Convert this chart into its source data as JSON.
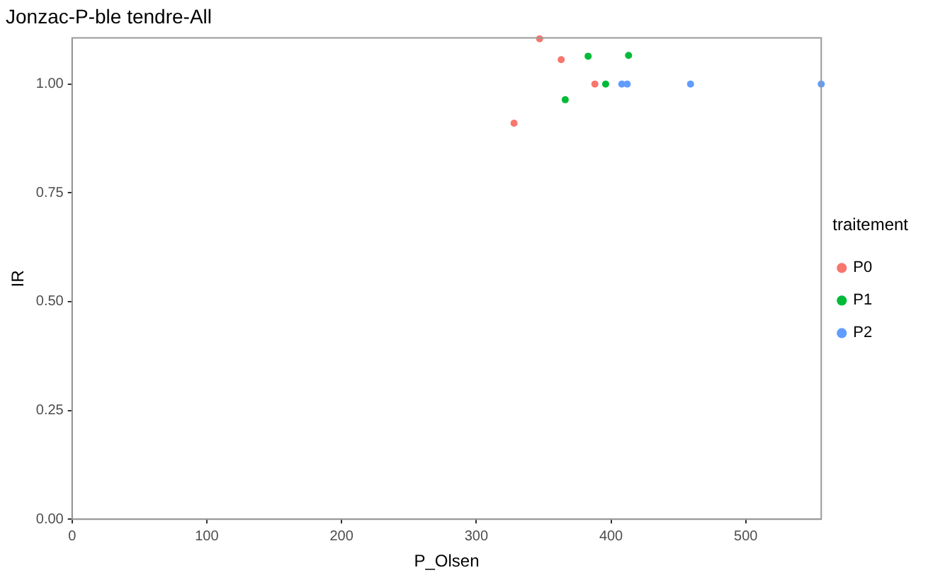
{
  "chart_data": {
    "type": "scatter",
    "title": "Jonzac-P-ble tendre-All",
    "xlabel": "P_Olsen",
    "ylabel": "IR",
    "legend_title": "traitement",
    "legend": "right",
    "grid": false,
    "marker": "circle",
    "xlim": [
      0,
      556
    ],
    "ylim": [
      0,
      1.106
    ],
    "xticks": [
      0,
      100,
      200,
      300,
      400,
      500
    ],
    "yticks": [
      {
        "value": 0,
        "label": "0.00"
      },
      {
        "value": 0.25,
        "label": "0.25"
      },
      {
        "value": 0.5,
        "label": "0.50"
      },
      {
        "value": 0.75,
        "label": "0.75"
      },
      {
        "value": 1,
        "label": "1.00"
      }
    ],
    "series": [
      {
        "name": "P0",
        "color": "#f8766d",
        "x": [
          347,
          363,
          388,
          328
        ],
        "values": [
          1.104,
          1.056,
          1.0,
          0.91
        ]
      },
      {
        "name": "P1",
        "color": "#00ba38",
        "x": [
          383,
          413,
          396,
          366
        ],
        "values": [
          1.064,
          1.066,
          1.0,
          0.964
        ]
      },
      {
        "name": "P2",
        "color": "#619cff",
        "x": [
          408,
          412,
          459,
          556
        ],
        "values": [
          1.0,
          1.0,
          1.0,
          1.0
        ]
      }
    ]
  }
}
